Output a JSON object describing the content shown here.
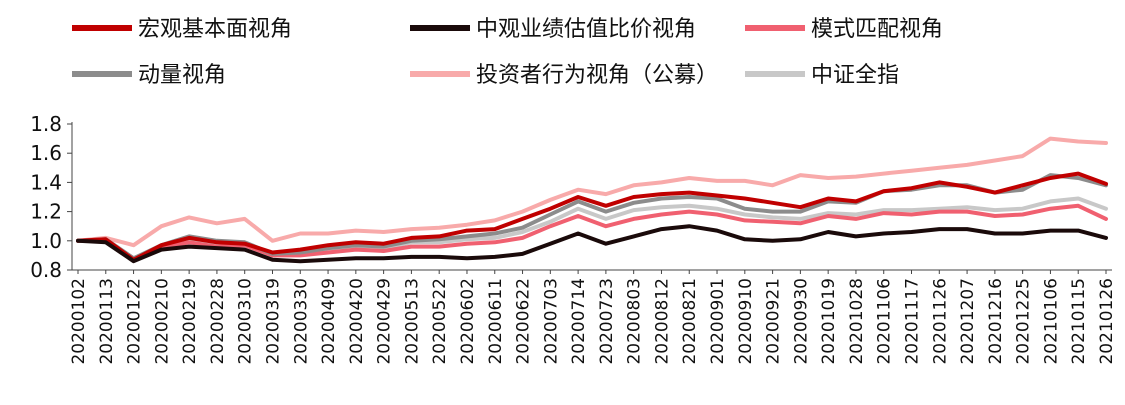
{
  "chart_data": {
    "type": "line",
    "title": "",
    "xlabel": "",
    "ylabel": "",
    "ylim": [
      0.8,
      1.8
    ],
    "yticks": [
      "0.8",
      "1.0",
      "1.2",
      "1.4",
      "1.6",
      "1.8"
    ],
    "grid": false,
    "legend_position": "top",
    "x_tick_labels": [
      "20200102",
      "20200113",
      "20200122",
      "20200210",
      "20200219",
      "20200228",
      "20200310",
      "20200319",
      "20200330",
      "20200409",
      "20200420",
      "20200429",
      "20200513",
      "20200522",
      "20200602",
      "20200611",
      "20200622",
      "20200703",
      "20200714",
      "20200723",
      "20200803",
      "20200812",
      "20200821",
      "20200901",
      "20200910",
      "20200921",
      "20200930",
      "20201019",
      "20201028",
      "20201106",
      "20201117",
      "20201126",
      "20201207",
      "20201216",
      "20201225",
      "20210106",
      "20210115",
      "20210126"
    ],
    "x": [
      "20200102",
      "20200113",
      "20200122",
      "20200210",
      "20200219",
      "20200228",
      "20200310",
      "20200319",
      "20200330",
      "20200409",
      "20200420",
      "20200429",
      "20200513",
      "20200522",
      "20200602",
      "20200611",
      "20200622",
      "20200703",
      "20200714",
      "20200723",
      "20200803",
      "20200812",
      "20200821",
      "20200901",
      "20200910",
      "20200921",
      "20200930",
      "20201019",
      "20201028",
      "20201106",
      "20201117",
      "20201126",
      "20201207",
      "20201216",
      "20201225",
      "20210106",
      "20210115",
      "20210126"
    ],
    "series": [
      {
        "name": "宏观基本面视角",
        "color": "#c00000",
        "width": 4,
        "values": [
          1.0,
          1.01,
          0.87,
          0.97,
          1.02,
          0.99,
          0.98,
          0.92,
          0.94,
          0.97,
          0.99,
          0.98,
          1.02,
          1.03,
          1.07,
          1.08,
          1.15,
          1.22,
          1.3,
          1.24,
          1.3,
          1.32,
          1.33,
          1.31,
          1.29,
          1.26,
          1.23,
          1.29,
          1.27,
          1.34,
          1.36,
          1.4,
          1.37,
          1.33,
          1.38,
          1.43,
          1.46,
          1.39
        ]
      },
      {
        "name": "中观业绩估值比价视角",
        "color": "#1a0a0a",
        "width": 4,
        "values": [
          1.0,
          0.99,
          0.86,
          0.94,
          0.96,
          0.95,
          0.94,
          0.87,
          0.86,
          0.87,
          0.88,
          0.88,
          0.89,
          0.89,
          0.88,
          0.89,
          0.91,
          0.98,
          1.05,
          0.98,
          1.03,
          1.08,
          1.1,
          1.07,
          1.01,
          1.0,
          1.01,
          1.06,
          1.03,
          1.05,
          1.06,
          1.08,
          1.08,
          1.05,
          1.05,
          1.07,
          1.07,
          1.02
        ]
      },
      {
        "name": "模式匹配视角",
        "color": "#f06070",
        "width": 4,
        "values": [
          1.0,
          1.0,
          0.88,
          0.95,
          0.99,
          0.96,
          0.97,
          0.9,
          0.9,
          0.92,
          0.94,
          0.93,
          0.96,
          0.96,
          0.98,
          0.99,
          1.02,
          1.1,
          1.17,
          1.1,
          1.15,
          1.18,
          1.2,
          1.18,
          1.14,
          1.13,
          1.12,
          1.17,
          1.15,
          1.19,
          1.18,
          1.2,
          1.2,
          1.17,
          1.18,
          1.22,
          1.24,
          1.15
        ]
      },
      {
        "name": "动量视角",
        "color": "#8c8c8c",
        "width": 4,
        "values": [
          1.0,
          1.01,
          0.88,
          0.97,
          1.03,
          1.0,
          0.99,
          0.91,
          0.92,
          0.95,
          0.97,
          0.96,
          1.0,
          1.01,
          1.03,
          1.05,
          1.09,
          1.18,
          1.27,
          1.2,
          1.26,
          1.29,
          1.3,
          1.29,
          1.22,
          1.2,
          1.2,
          1.27,
          1.26,
          1.34,
          1.35,
          1.38,
          1.38,
          1.33,
          1.35,
          1.45,
          1.43,
          1.38
        ]
      },
      {
        "name": "投资者行为视角（公募）",
        "color": "#f8aaaa",
        "width": 4,
        "values": [
          1.0,
          1.02,
          0.97,
          1.1,
          1.16,
          1.12,
          1.15,
          1.0,
          1.05,
          1.05,
          1.07,
          1.06,
          1.08,
          1.09,
          1.11,
          1.14,
          1.2,
          1.28,
          1.35,
          1.32,
          1.38,
          1.4,
          1.43,
          1.41,
          1.41,
          1.38,
          1.45,
          1.43,
          1.44,
          1.46,
          1.48,
          1.5,
          1.52,
          1.55,
          1.58,
          1.7,
          1.68,
          1.67
        ]
      },
      {
        "name": "中证全指",
        "color": "#c8c8c8",
        "width": 4,
        "values": [
          1.0,
          1.0,
          0.87,
          0.96,
          1.01,
          0.98,
          0.99,
          0.91,
          0.92,
          0.94,
          0.96,
          0.95,
          0.99,
          0.99,
          1.01,
          1.02,
          1.06,
          1.13,
          1.22,
          1.15,
          1.21,
          1.23,
          1.24,
          1.22,
          1.18,
          1.16,
          1.15,
          1.19,
          1.18,
          1.21,
          1.21,
          1.22,
          1.23,
          1.21,
          1.22,
          1.27,
          1.29,
          1.22
        ]
      }
    ]
  }
}
